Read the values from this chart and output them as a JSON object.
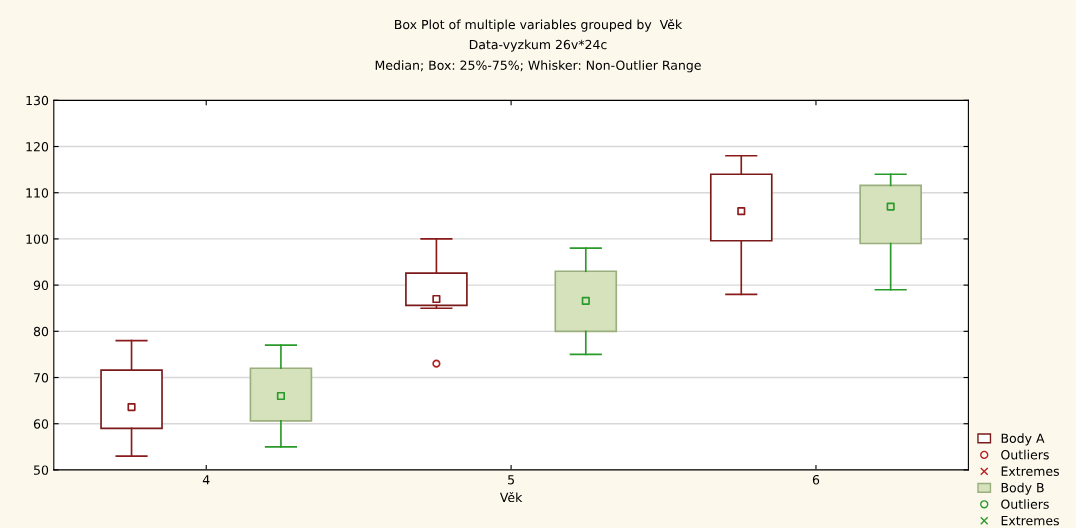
{
  "chart_data": {
    "type": "box",
    "title": "Box Plot of multiple variables grouped by  Věk",
    "subtitle": "Data-vyzkum 26v*24c\nMedian; Box: 25%-75%; Whisker: Non-Outlier Range",
    "xlabel": "Věk",
    "categories": [
      "4",
      "5",
      "6"
    ],
    "ylim": [
      50,
      130
    ],
    "yticks": [
      50,
      60,
      70,
      80,
      90,
      100,
      110,
      120,
      130
    ],
    "grid": "y",
    "legend": "bottom right",
    "marker": "square",
    "series": [
      {
        "name": "Body A",
        "color": "#7a1a1a",
        "boxes": [
          {
            "low": 53,
            "q1": 59,
            "median": 63.6,
            "q3": 71.6,
            "high": 78
          },
          {
            "low": 85,
            "q1": 85.6,
            "median": 87,
            "q3": 92.6,
            "high": 100
          },
          {
            "low": 88,
            "q1": 99.6,
            "median": 106,
            "q3": 114,
            "high": 118
          }
        ]
      },
      {
        "name": "Outliers",
        "type": "scatter",
        "marker": "circle",
        "color": "#b22222",
        "values": [
          null,
          73,
          null
        ]
      },
      {
        "name": "Extremes",
        "type": "scatter",
        "marker": "cross",
        "color": "#b22222",
        "values": [
          null,
          null,
          null
        ]
      },
      {
        "name": "Body B",
        "color": "#d6e2bc",
        "boxes": [
          {
            "low": 55,
            "q1": 60.6,
            "median": 66,
            "q3": 72,
            "high": 77
          },
          {
            "low": 75,
            "q1": 80,
            "median": 86.6,
            "q3": 93,
            "high": 98
          },
          {
            "low": 89,
            "q1": 99,
            "median": 107,
            "q3": 111.6,
            "high": 114
          }
        ]
      },
      {
        "name": "Outliers",
        "type": "scatter",
        "marker": "circle",
        "color": "#2a9a2a",
        "values": [
          null,
          null,
          null
        ]
      },
      {
        "name": "Extremes",
        "type": "scatter",
        "marker": "cross",
        "color": "#2a9a2a",
        "values": [
          null,
          null,
          null
        ]
      }
    ]
  }
}
